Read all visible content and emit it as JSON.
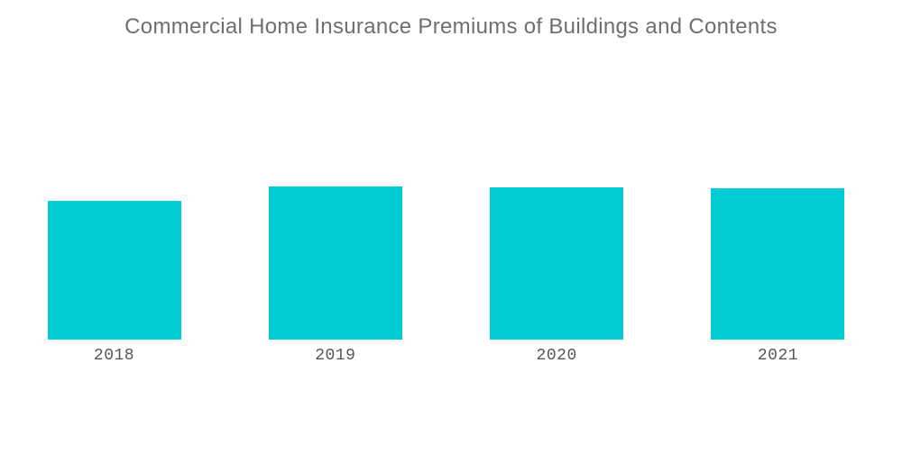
{
  "chart_data": {
    "type": "bar",
    "title": "Commercial Home Insurance Premiums of Buildings and Contents",
    "categories": [
      "2018",
      "2019",
      "2020",
      "2021"
    ],
    "values": [
      154,
      170,
      169,
      168
    ],
    "xlabel": "",
    "ylabel": "",
    "ylim": [
      0,
      260
    ],
    "value_axis": "hidden",
    "gridlines": false,
    "legend": "none",
    "bar_color": "#00cbd2",
    "title_color": "#6e6f71",
    "label_color": "#55565a",
    "background_color": "#ffffff"
  }
}
